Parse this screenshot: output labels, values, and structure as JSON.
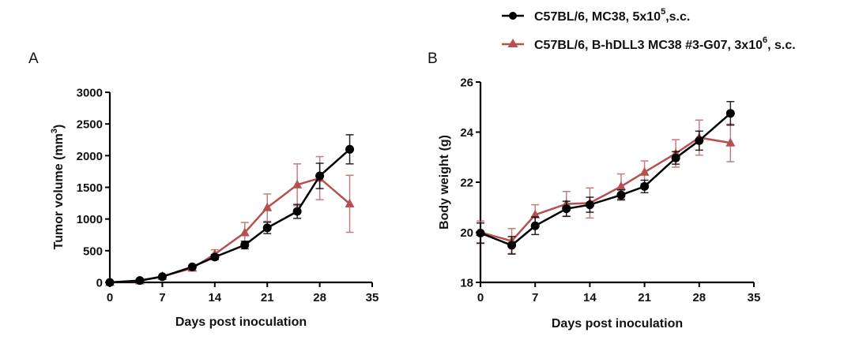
{
  "legend": {
    "placement": "top-right",
    "entries": [
      {
        "series_index": 0,
        "text": "C57BL/6, MC38, 5x10",
        "sup": "5",
        "after": ",s.c.",
        "marker": "circle",
        "color": "#000000"
      },
      {
        "series_index": 1,
        "text": "C57BL/6, B-hDLL3 MC38 #3-G07, 3x10",
        "sup": "6",
        "after": ", s.c.",
        "marker": "triangle",
        "color": "#B5504F"
      }
    ]
  },
  "chart_data": [
    {
      "panel": "A",
      "type": "line",
      "title": "",
      "xlabel": "Days post inoculation",
      "ylabel": "Tumor volume (mm",
      "ylabel_sup": "3",
      "ylabel_after": ")",
      "xlim": [
        0,
        35
      ],
      "ylim": [
        0,
        3000
      ],
      "xticks": [
        0,
        7,
        14,
        21,
        28,
        35
      ],
      "yticks": [
        0,
        500,
        1000,
        1500,
        2000,
        2500,
        3000
      ],
      "grid": false,
      "x": [
        0,
        4,
        7,
        11,
        14,
        18,
        21,
        25,
        28,
        32
      ],
      "series": [
        {
          "name": "C57BL/6, MC38, 5x10^5,s.c.",
          "color": "#000000",
          "marker": "circle",
          "values": [
            0,
            30,
            90,
            245,
            400,
            590,
            860,
            1120,
            1680,
            2100
          ],
          "errors": [
            5,
            10,
            15,
            25,
            40,
            60,
            90,
            110,
            200,
            230
          ]
        },
        {
          "name": "C57BL/6, B-hDLL3 MC38 #3-G07, 3x10^6, s.c.",
          "color": "#B5504F",
          "marker": "triangle",
          "values": [
            0,
            25,
            95,
            225,
            445,
            785,
            1180,
            1540,
            1645,
            1240
          ],
          "errors": [
            5,
            10,
            15,
            30,
            70,
            160,
            215,
            330,
            340,
            450
          ]
        }
      ]
    },
    {
      "panel": "B",
      "type": "line",
      "title": "",
      "xlabel": "Days post inoculation",
      "ylabel": "Body weight (g)",
      "xlim": [
        0,
        35
      ],
      "ylim": [
        18,
        26
      ],
      "xticks": [
        0,
        7,
        14,
        21,
        28,
        35
      ],
      "yticks": [
        18,
        20,
        22,
        24,
        26
      ],
      "grid": false,
      "x": [
        0,
        4,
        7,
        11,
        14,
        18,
        21,
        25,
        28,
        32
      ],
      "series": [
        {
          "name": "C57BL/6, MC38, 5x10^5,s.c.",
          "color": "#000000",
          "marker": "circle",
          "values": [
            19.97,
            19.48,
            20.26,
            20.94,
            21.1,
            21.49,
            21.83,
            22.97,
            23.66,
            24.75
          ],
          "errors": [
            0.4,
            0.35,
            0.35,
            0.3,
            0.3,
            0.2,
            0.25,
            0.25,
            0.38,
            0.47
          ]
        },
        {
          "name": "C57BL/6, B-hDLL3 MC38 #3-G07, 3x10^6, s.c.",
          "color": "#B5504F",
          "marker": "triangle",
          "values": [
            20.0,
            19.65,
            20.7,
            21.13,
            21.17,
            21.83,
            22.4,
            23.15,
            23.78,
            23.57
          ],
          "errors": [
            0.45,
            0.5,
            0.4,
            0.5,
            0.6,
            0.5,
            0.45,
            0.55,
            0.7,
            0.75
          ]
        }
      ]
    }
  ]
}
